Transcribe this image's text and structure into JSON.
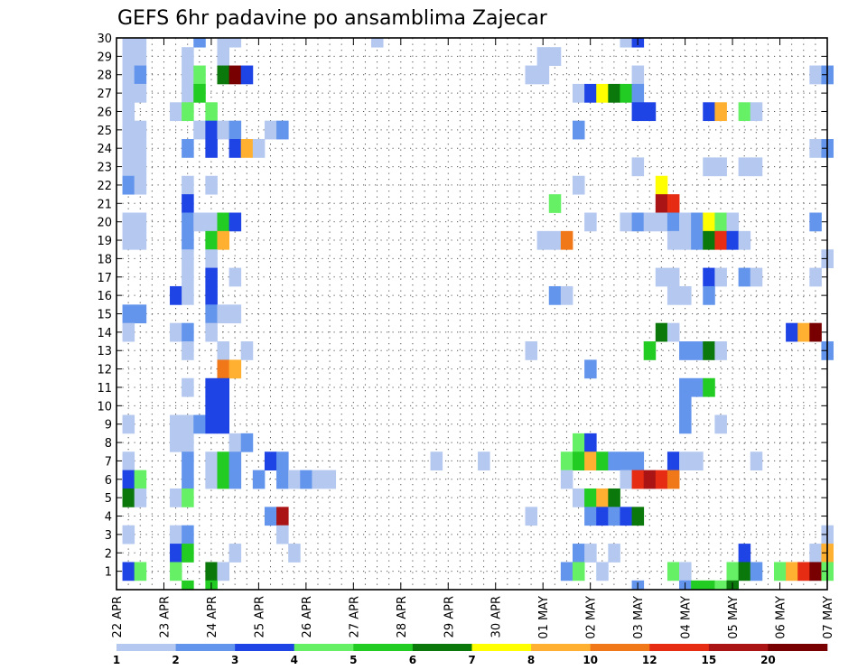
{
  "chart_data": {
    "type": "heatmap",
    "title": "GEFS 6hr padavine po ansamblima Zajecar",
    "xlabel": "",
    "ylabel": "",
    "x_tick_labels": [
      "22 APR",
      "23 APR",
      "24 APR",
      "25 APR",
      "26 APR",
      "27 APR",
      "28 APR",
      "29 APR",
      "30 APR",
      "01 MAY",
      "02 MAY",
      "03 MAY",
      "04 MAY",
      "05 MAY",
      "06 MAY",
      "07 MAY"
    ],
    "y_tick_labels": [
      "1",
      "2",
      "3",
      "4",
      "5",
      "6",
      "7",
      "8",
      "9",
      "10",
      "11",
      "12",
      "13",
      "14",
      "15",
      "16",
      "17",
      "18",
      "19",
      "20",
      "21",
      "22",
      "23",
      "24",
      "25",
      "26",
      "27",
      "28",
      "29",
      "30"
    ],
    "x_unit": "6-hour step from 22 APR 00Z",
    "y_unit": "ensemble member",
    "grid": true,
    "legend_position": "bottom",
    "levels": [
      1,
      2,
      3,
      4,
      5,
      6,
      7,
      8,
      10,
      12,
      15,
      20
    ],
    "legend_labels": [
      "1",
      "2",
      "3",
      "4",
      "5",
      "6",
      "7",
      "8",
      "10",
      "12",
      "15",
      "20"
    ],
    "colors": [
      "#b4c8f0",
      "#6495ed",
      "#1e44e6",
      "#66f066",
      "#22cc22",
      "#0a780a",
      "#ffff00",
      "#ffb030",
      "#f07818",
      "#e62d14",
      "#aa1414",
      "#780000"
    ],
    "cells": [
      {
        "m": 30,
        "t": [
          [
            1,
            1
          ],
          [
            2,
            1
          ],
          [
            7,
            2
          ],
          [
            9,
            1
          ],
          [
            10,
            1
          ],
          [
            22,
            1
          ],
          [
            43,
            1
          ],
          [
            44,
            3
          ]
        ]
      },
      {
        "m": 29,
        "t": [
          [
            1,
            1
          ],
          [
            2,
            1
          ],
          [
            6,
            1
          ],
          [
            9,
            1
          ],
          [
            36,
            1
          ],
          [
            37,
            1
          ]
        ]
      },
      {
        "m": 28,
        "t": [
          [
            1,
            1
          ],
          [
            2,
            2
          ],
          [
            6,
            1
          ],
          [
            7,
            4
          ],
          [
            9,
            6
          ],
          [
            10,
            12
          ],
          [
            11,
            3
          ],
          [
            35,
            1
          ],
          [
            36,
            1
          ],
          [
            44,
            1
          ],
          [
            59,
            1
          ],
          [
            60,
            2
          ]
        ]
      },
      {
        "m": 27,
        "t": [
          [
            1,
            1
          ],
          [
            2,
            1
          ],
          [
            6,
            1
          ],
          [
            7,
            5
          ],
          [
            39,
            1
          ],
          [
            40,
            3
          ],
          [
            41,
            7
          ],
          [
            42,
            6
          ],
          [
            43,
            5
          ],
          [
            44,
            2
          ]
        ]
      },
      {
        "m": 26,
        "t": [
          [
            1,
            1
          ],
          [
            5,
            1
          ],
          [
            6,
            4
          ],
          [
            8,
            4
          ],
          [
            44,
            3
          ],
          [
            45,
            3
          ],
          [
            50,
            3
          ],
          [
            51,
            8
          ],
          [
            53,
            4
          ],
          [
            54,
            1
          ]
        ]
      },
      {
        "m": 25,
        "t": [
          [
            1,
            1
          ],
          [
            2,
            1
          ],
          [
            7,
            1
          ],
          [
            8,
            3
          ],
          [
            9,
            1
          ],
          [
            10,
            2
          ],
          [
            13,
            1
          ],
          [
            14,
            2
          ],
          [
            39,
            2
          ]
        ]
      },
      {
        "m": 24,
        "t": [
          [
            1,
            1
          ],
          [
            2,
            1
          ],
          [
            6,
            2
          ],
          [
            8,
            3
          ],
          [
            10,
            3
          ],
          [
            11,
            8
          ],
          [
            12,
            1
          ],
          [
            59,
            1
          ],
          [
            60,
            2
          ]
        ]
      },
      {
        "m": 23,
        "t": [
          [
            1,
            1
          ],
          [
            2,
            1
          ],
          [
            44,
            1
          ],
          [
            50,
            1
          ],
          [
            51,
            1
          ],
          [
            53,
            1
          ],
          [
            54,
            1
          ]
        ]
      },
      {
        "m": 22,
        "t": [
          [
            1,
            2
          ],
          [
            2,
            1
          ],
          [
            6,
            1
          ],
          [
            8,
            1
          ],
          [
            39,
            1
          ],
          [
            46,
            7
          ]
        ]
      },
      {
        "m": 21,
        "t": [
          [
            6,
            3
          ],
          [
            37,
            4
          ],
          [
            46,
            11
          ],
          [
            47,
            10
          ]
        ]
      },
      {
        "m": 20,
        "t": [
          [
            1,
            1
          ],
          [
            2,
            1
          ],
          [
            6,
            2
          ],
          [
            7,
            1
          ],
          [
            8,
            1
          ],
          [
            9,
            5
          ],
          [
            10,
            3
          ],
          [
            40,
            1
          ],
          [
            43,
            1
          ],
          [
            44,
            2
          ],
          [
            45,
            1
          ],
          [
            46,
            1
          ],
          [
            47,
            2
          ],
          [
            48,
            1
          ],
          [
            49,
            2
          ],
          [
            50,
            7
          ],
          [
            51,
            4
          ],
          [
            52,
            1
          ],
          [
            59,
            2
          ]
        ]
      },
      {
        "m": 19,
        "t": [
          [
            1,
            1
          ],
          [
            2,
            1
          ],
          [
            6,
            2
          ],
          [
            8,
            5
          ],
          [
            9,
            8
          ],
          [
            36,
            1
          ],
          [
            37,
            1
          ],
          [
            38,
            9
          ],
          [
            47,
            1
          ],
          [
            48,
            1
          ],
          [
            49,
            2
          ],
          [
            50,
            6
          ],
          [
            51,
            10
          ],
          [
            52,
            3
          ],
          [
            53,
            1
          ]
        ]
      },
      {
        "m": 18,
        "t": [
          [
            6,
            1
          ],
          [
            8,
            1
          ],
          [
            60,
            1
          ]
        ]
      },
      {
        "m": 17,
        "t": [
          [
            6,
            1
          ],
          [
            8,
            3
          ],
          [
            10,
            1
          ],
          [
            46,
            1
          ],
          [
            47,
            1
          ],
          [
            50,
            3
          ],
          [
            51,
            1
          ],
          [
            53,
            2
          ],
          [
            54,
            1
          ],
          [
            59,
            1
          ]
        ]
      },
      {
        "m": 16,
        "t": [
          [
            5,
            3
          ],
          [
            6,
            1
          ],
          [
            8,
            3
          ],
          [
            37,
            2
          ],
          [
            38,
            1
          ],
          [
            47,
            1
          ],
          [
            48,
            1
          ],
          [
            50,
            2
          ]
        ]
      },
      {
        "m": 15,
        "t": [
          [
            1,
            2
          ],
          [
            2,
            2
          ],
          [
            8,
            2
          ],
          [
            9,
            1
          ],
          [
            10,
            1
          ]
        ]
      },
      {
        "m": 14,
        "t": [
          [
            1,
            1
          ],
          [
            5,
            1
          ],
          [
            6,
            2
          ],
          [
            8,
            1
          ],
          [
            46,
            6
          ],
          [
            47,
            1
          ],
          [
            57,
            3
          ],
          [
            58,
            8
          ],
          [
            59,
            12
          ]
        ]
      },
      {
        "m": 13,
        "t": [
          [
            6,
            1
          ],
          [
            9,
            1
          ],
          [
            11,
            1
          ],
          [
            35,
            1
          ],
          [
            45,
            5
          ],
          [
            48,
            2
          ],
          [
            49,
            2
          ],
          [
            50,
            6
          ],
          [
            51,
            1
          ],
          [
            60,
            2
          ]
        ]
      },
      {
        "m": 12,
        "t": [
          [
            9,
            9
          ],
          [
            10,
            8
          ],
          [
            40,
            2
          ]
        ]
      },
      {
        "m": 11,
        "t": [
          [
            6,
            1
          ],
          [
            8,
            3
          ],
          [
            9,
            3
          ],
          [
            48,
            2
          ],
          [
            49,
            2
          ],
          [
            50,
            5
          ]
        ]
      },
      {
        "m": 10,
        "t": [
          [
            8,
            3
          ],
          [
            9,
            3
          ],
          [
            48,
            2
          ]
        ]
      },
      {
        "m": 9,
        "t": [
          [
            1,
            1
          ],
          [
            5,
            1
          ],
          [
            6,
            1
          ],
          [
            7,
            2
          ],
          [
            8,
            3
          ],
          [
            9,
            3
          ],
          [
            48,
            2
          ],
          [
            51,
            1
          ]
        ]
      },
      {
        "m": 8,
        "t": [
          [
            5,
            1
          ],
          [
            6,
            1
          ],
          [
            10,
            1
          ],
          [
            11,
            2
          ],
          [
            39,
            4
          ],
          [
            40,
            3
          ]
        ]
      },
      {
        "m": 7,
        "t": [
          [
            1,
            1
          ],
          [
            6,
            2
          ],
          [
            8,
            1
          ],
          [
            9,
            5
          ],
          [
            10,
            2
          ],
          [
            13,
            3
          ],
          [
            14,
            2
          ],
          [
            27,
            1
          ],
          [
            31,
            1
          ],
          [
            38,
            4
          ],
          [
            39,
            5
          ],
          [
            40,
            8
          ],
          [
            41,
            5
          ],
          [
            42,
            2
          ],
          [
            43,
            2
          ],
          [
            44,
            2
          ],
          [
            47,
            3
          ],
          [
            48,
            1
          ],
          [
            49,
            1
          ],
          [
            54,
            1
          ]
        ]
      },
      {
        "m": 6,
        "t": [
          [
            1,
            3
          ],
          [
            2,
            4
          ],
          [
            6,
            2
          ],
          [
            8,
            1
          ],
          [
            9,
            5
          ],
          [
            10,
            2
          ],
          [
            12,
            2
          ],
          [
            14,
            2
          ],
          [
            15,
            1
          ],
          [
            16,
            2
          ],
          [
            17,
            1
          ],
          [
            18,
            1
          ],
          [
            38,
            1
          ],
          [
            43,
            1
          ],
          [
            44,
            10
          ],
          [
            45,
            11
          ],
          [
            46,
            10
          ],
          [
            47,
            9
          ]
        ]
      },
      {
        "m": 5,
        "t": [
          [
            1,
            6
          ],
          [
            2,
            1
          ],
          [
            5,
            1
          ],
          [
            6,
            4
          ],
          [
            39,
            1
          ],
          [
            40,
            5
          ],
          [
            41,
            8
          ],
          [
            42,
            6
          ]
        ]
      },
      {
        "m": 4,
        "t": [
          [
            13,
            2
          ],
          [
            14,
            11
          ],
          [
            35,
            1
          ],
          [
            40,
            2
          ],
          [
            41,
            3
          ],
          [
            42,
            2
          ],
          [
            43,
            3
          ],
          [
            44,
            6
          ]
        ]
      },
      {
        "m": 3,
        "t": [
          [
            1,
            1
          ],
          [
            5,
            1
          ],
          [
            6,
            2
          ],
          [
            14,
            1
          ],
          [
            60,
            1
          ]
        ]
      },
      {
        "m": 2,
        "t": [
          [
            5,
            3
          ],
          [
            6,
            5
          ],
          [
            10,
            1
          ],
          [
            15,
            1
          ],
          [
            39,
            2
          ],
          [
            40,
            1
          ],
          [
            42,
            1
          ],
          [
            53,
            3
          ],
          [
            59,
            1
          ],
          [
            60,
            8
          ]
        ]
      },
      {
        "m": 1,
        "t": [
          [
            1,
            3
          ],
          [
            2,
            4
          ],
          [
            5,
            4
          ],
          [
            8,
            6
          ],
          [
            9,
            1
          ],
          [
            38,
            2
          ],
          [
            39,
            4
          ],
          [
            41,
            1
          ],
          [
            47,
            4
          ],
          [
            48,
            1
          ],
          [
            52,
            4
          ],
          [
            53,
            6
          ],
          [
            54,
            2
          ],
          [
            56,
            4
          ],
          [
            57,
            8
          ],
          [
            58,
            10
          ],
          [
            59,
            12
          ],
          [
            60,
            4
          ]
        ]
      },
      {
        "m": 0,
        "t": [
          [
            6,
            5
          ],
          [
            8,
            5
          ],
          [
            44,
            2
          ],
          [
            48,
            2
          ],
          [
            49,
            5
          ],
          [
            50,
            5
          ],
          [
            51,
            4
          ],
          [
            52,
            6
          ]
        ]
      }
    ]
  }
}
